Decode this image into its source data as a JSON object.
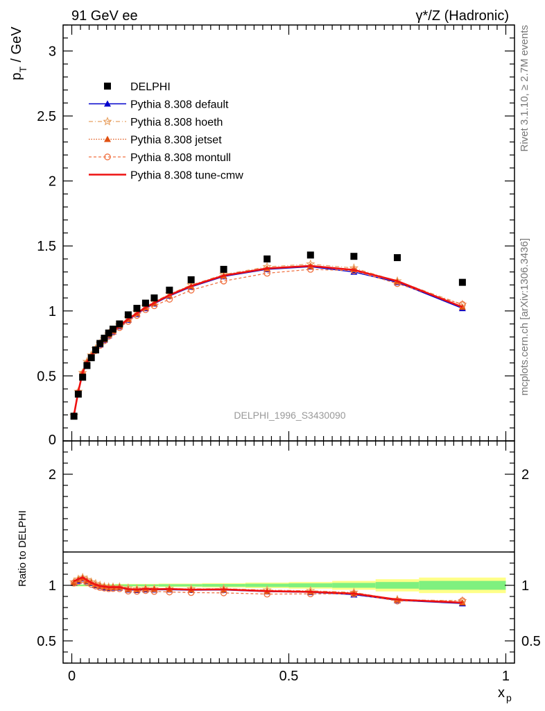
{
  "header": {
    "left": "91 GeV ee",
    "right": "γ*/Z (Hadronic)"
  },
  "side_text": {
    "rivet": "Rivet 3.1.10, ≥ 2.7M events",
    "mcplots": "mcplots.cern.ch [arXiv:1306.3436]"
  },
  "watermark": "DELPHI_1996_S3430090",
  "axes": {
    "ylabel_top": "p_T / GeV",
    "ylabel_bottom": "Ratio to DELPHI",
    "xlabel": "x_p"
  },
  "colors": {
    "data": "#000000",
    "default": "#0000cc",
    "hoeth": "#e8a060",
    "jetset": "#e05010",
    "montull": "#f07040",
    "tune_cmw": "#ee1111",
    "band_green": "#7ff07f",
    "band_yellow": "#ffff88"
  },
  "chart_data": {
    "type": "line",
    "top_panel": {
      "xlim": [
        -0.02,
        1.02
      ],
      "ylim": [
        0,
        3.2
      ],
      "yticks": [
        "0.5",
        "1",
        "1.5",
        "2",
        "2.5",
        "3"
      ],
      "xticks": [
        "0",
        "0.5",
        "1"
      ]
    },
    "ratio_panel": {
      "ylim": [
        0.3,
        2.3
      ],
      "yticks": [
        "0.5",
        "1",
        "2"
      ]
    },
    "x": [
      0.005,
      0.015,
      0.025,
      0.035,
      0.045,
      0.055,
      0.065,
      0.075,
      0.085,
      0.095,
      0.11,
      0.13,
      0.15,
      0.17,
      0.19,
      0.225,
      0.275,
      0.35,
      0.45,
      0.55,
      0.65,
      0.75,
      0.9
    ],
    "legend": [
      "DELPHI",
      "Pythia 8.308 default",
      "Pythia 8.308 hoeth",
      "Pythia 8.308 jetset",
      "Pythia 8.308 montull",
      "Pythia 8.308 tune-cmw"
    ],
    "data": {
      "name": "DELPHI",
      "values": [
        0.19,
        0.36,
        0.49,
        0.58,
        0.64,
        0.7,
        0.75,
        0.79,
        0.83,
        0.86,
        0.9,
        0.97,
        1.02,
        1.06,
        1.1,
        1.16,
        1.24,
        1.32,
        1.4,
        1.43,
        1.42,
        1.41,
        1.22
      ]
    },
    "series": [
      {
        "name": "Pythia 8.308 default",
        "key": "default",
        "values": [
          0.195,
          0.375,
          0.52,
          0.6,
          0.65,
          0.7,
          0.74,
          0.775,
          0.81,
          0.84,
          0.88,
          0.93,
          0.975,
          1.02,
          1.055,
          1.115,
          1.185,
          1.265,
          1.32,
          1.34,
          1.3,
          1.22,
          1.02
        ],
        "ratio": [
          1.02,
          1.04,
          1.06,
          1.035,
          1.02,
          1.0,
          0.99,
          0.98,
          0.975,
          0.977,
          0.978,
          0.96,
          0.956,
          0.962,
          0.96,
          0.96,
          0.956,
          0.958,
          0.943,
          0.937,
          0.916,
          0.865,
          0.836
        ]
      },
      {
        "name": "Pythia 8.308 hoeth",
        "key": "hoeth",
        "values": [
          0.196,
          0.38,
          0.525,
          0.61,
          0.66,
          0.71,
          0.75,
          0.785,
          0.82,
          0.85,
          0.89,
          0.945,
          0.99,
          1.035,
          1.07,
          1.13,
          1.2,
          1.28,
          1.34,
          1.36,
          1.33,
          1.23,
          1.05
        ],
        "ratio": [
          1.03,
          1.055,
          1.07,
          1.05,
          1.03,
          1.015,
          1.0,
          0.99,
          0.985,
          0.985,
          0.986,
          0.975,
          0.968,
          0.97,
          0.968,
          0.97,
          0.968,
          0.97,
          0.957,
          0.951,
          0.937,
          0.872,
          0.861
        ]
      },
      {
        "name": "Pythia 8.308 jetset",
        "key": "jetset",
        "values": [
          0.195,
          0.378,
          0.522,
          0.605,
          0.655,
          0.705,
          0.745,
          0.78,
          0.815,
          0.845,
          0.885,
          0.935,
          0.98,
          1.025,
          1.06,
          1.12,
          1.19,
          1.27,
          1.325,
          1.345,
          1.32,
          1.225,
          1.03
        ],
        "ratio": [
          1.025,
          1.05,
          1.065,
          1.04,
          1.025,
          1.005,
          0.993,
          0.987,
          0.98,
          0.982,
          0.983,
          0.964,
          0.961,
          0.967,
          0.964,
          0.966,
          0.96,
          0.962,
          0.946,
          0.941,
          0.93,
          0.869,
          0.844
        ]
      },
      {
        "name": "Pythia 8.308 montull",
        "key": "montull",
        "values": [
          0.194,
          0.372,
          0.515,
          0.595,
          0.645,
          0.695,
          0.735,
          0.77,
          0.805,
          0.835,
          0.872,
          0.92,
          0.965,
          1.01,
          1.04,
          1.09,
          1.16,
          1.23,
          1.29,
          1.32,
          1.31,
          1.21,
          1.05
        ],
        "ratio": [
          1.02,
          1.033,
          1.051,
          1.026,
          1.008,
          0.993,
          0.98,
          0.975,
          0.97,
          0.971,
          0.969,
          0.948,
          0.946,
          0.953,
          0.945,
          0.94,
          0.935,
          0.932,
          0.921,
          0.923,
          0.923,
          0.858,
          0.861
        ]
      },
      {
        "name": "Pythia 8.308 tune-cmw",
        "key": "tune_cmw",
        "values": [
          0.197,
          0.38,
          0.525,
          0.607,
          0.655,
          0.705,
          0.745,
          0.782,
          0.816,
          0.846,
          0.886,
          0.937,
          0.982,
          1.027,
          1.062,
          1.122,
          1.192,
          1.272,
          1.327,
          1.347,
          1.315,
          1.23,
          1.03
        ],
        "ratio": [
          1.037,
          1.056,
          1.071,
          1.047,
          1.023,
          1.007,
          0.993,
          0.99,
          0.983,
          0.984,
          0.984,
          0.966,
          0.963,
          0.969,
          0.965,
          0.967,
          0.961,
          0.964,
          0.948,
          0.942,
          0.926,
          0.872,
          0.844
        ]
      }
    ],
    "data_band": {
      "x_edges": [
        0.0,
        0.1,
        0.2,
        0.3,
        0.4,
        0.5,
        0.6,
        0.7,
        0.8,
        1.0
      ],
      "green_half": [
        0.006,
        0.008,
        0.01,
        0.012,
        0.015,
        0.018,
        0.022,
        0.03,
        0.04
      ],
      "yellow_half": [
        0.01,
        0.013,
        0.016,
        0.02,
        0.025,
        0.03,
        0.04,
        0.055,
        0.07
      ]
    }
  }
}
